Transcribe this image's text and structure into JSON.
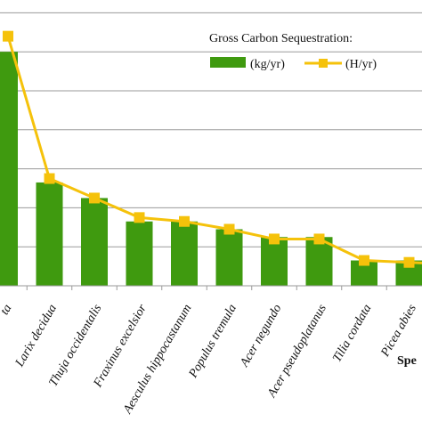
{
  "chart_data": {
    "type": "bar",
    "legend_title": "Gross Carbon Sequestration:",
    "legend_position": "top-right",
    "grid": true,
    "xlabel": "Spe",
    "categories": [
      "ta",
      "Larix decidua",
      "Thuja occidentalis",
      "Fraxinus excelsior",
      "Aesculus hippocastanum",
      "Populus tremula",
      "Acer negundo",
      "Acer pseudoplatanus",
      "Tilia cordata",
      "Picea abies",
      ""
    ],
    "series": [
      {
        "name": "(kg/yr)",
        "type": "bar",
        "color": "#3f9a0f",
        "values": [
          6.0,
          2.65,
          2.25,
          1.65,
          1.65,
          1.45,
          1.25,
          1.25,
          0.65,
          0.65,
          0
        ]
      },
      {
        "name": "(H/yr)",
        "type": "line",
        "color": "#f5c20b",
        "values": [
          6.4,
          2.75,
          2.25,
          1.75,
          1.65,
          1.45,
          1.2,
          1.2,
          0.65,
          0.6,
          0.55
        ]
      }
    ],
    "ylim": [
      0,
      7.4
    ]
  }
}
